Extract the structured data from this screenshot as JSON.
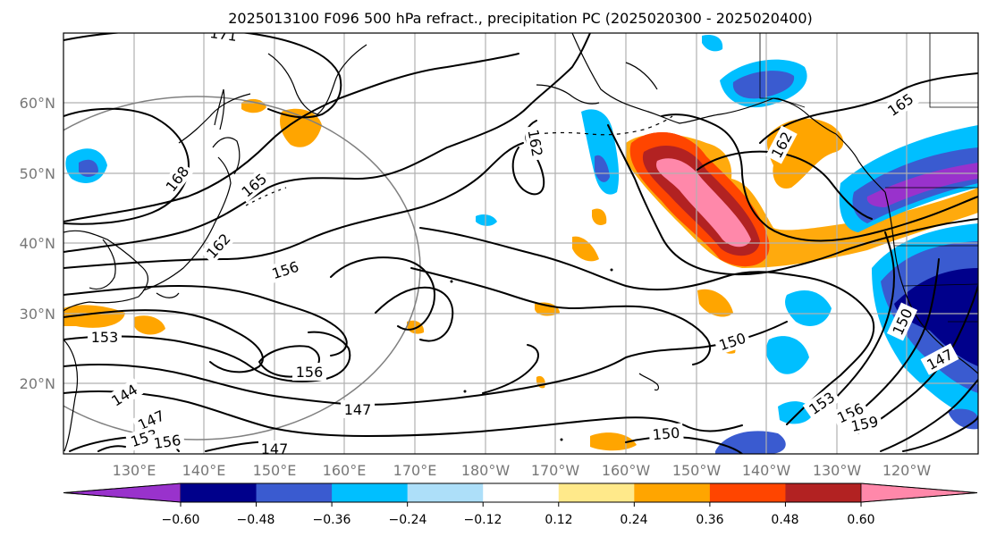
{
  "title": "2025013100 F096 500 hPa refract., precipitation PC (2025020300 - 2025020400)",
  "map": {
    "lat_labels": [
      "60°N",
      "50°N",
      "40°N",
      "30°N",
      "20°N"
    ],
    "lon_labels": [
      "130°E",
      "140°E",
      "150°E",
      "160°E",
      "170°E",
      "180°W",
      "170°W",
      "160°W",
      "150°W",
      "140°W",
      "130°W",
      "120°W"
    ],
    "grid_lines": true
  },
  "contours": {
    "color": "#000000",
    "labels": [
      "171",
      "168",
      "165",
      "162",
      "162",
      "162",
      "165",
      "156",
      "156",
      "153",
      "150",
      "150",
      "150",
      "153",
      "156",
      "159",
      "147",
      "147",
      "147",
      "144",
      "147",
      "153",
      "156"
    ]
  },
  "colorbar": {
    "colors": [
      "#9932CC",
      "#00008B",
      "#3A5BD0",
      "#00BFFF",
      "#ADDFF9",
      "#FFFFFF",
      "#FFE98A",
      "#FFA500",
      "#FF4500",
      "#B22222",
      "#FF88AA"
    ],
    "tick_labels": [
      "−0.60",
      "−0.48",
      "−0.36",
      "−0.24",
      "−0.12",
      "0.12",
      "0.24",
      "0.36",
      "0.48",
      "0.60"
    ],
    "extend": "both"
  }
}
